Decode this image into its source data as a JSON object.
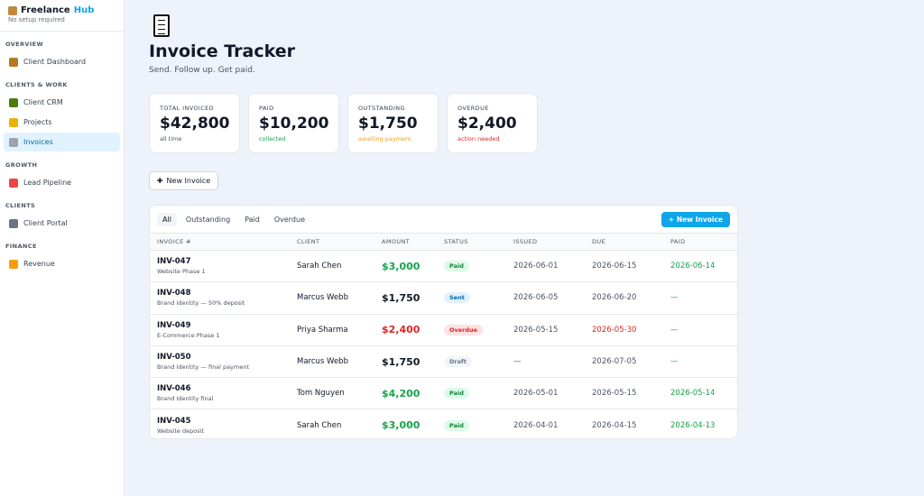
{
  "sidebar": {
    "brand": "Freelance",
    "brand_accent": "Hub",
    "tagline": "No setup required",
    "sections": [
      {
        "title": "OVERVIEW",
        "items": [
          {
            "label": "Client Dashboard",
            "color": "#b7791f"
          }
        ]
      },
      {
        "title": "CLIENTS & WORK",
        "items": [
          {
            "label": "Client CRM",
            "color": "#4d7c0f"
          },
          {
            "label": "Projects",
            "color": "#eab308"
          },
          {
            "label": "Invoices",
            "color": "#9ca3af",
            "active": true
          }
        ]
      },
      {
        "title": "GROWTH",
        "items": [
          {
            "label": "Lead Pipeline",
            "color": "#ef4444"
          }
        ]
      },
      {
        "title": "CLIENTS",
        "items": [
          {
            "label": "Client Portal",
            "color": "#6b7280"
          }
        ]
      },
      {
        "title": "FINANCE",
        "items": [
          {
            "label": "Revenue",
            "color": "#f59e0b"
          }
        ]
      }
    ]
  },
  "header": {
    "title": "Invoice Tracker",
    "subtitle": "Send. Follow up. Get paid."
  },
  "stats": [
    {
      "label": "TOTAL INVOICED",
      "value": "$42,800",
      "note": "all time",
      "color": "#4b5563"
    },
    {
      "label": "PAID",
      "value": "$10,200",
      "note": "collected",
      "color": "#16a34a"
    },
    {
      "label": "OUTSTANDING",
      "value": "$1,750",
      "note": "awaiting payment",
      "color": "#f59e0b"
    },
    {
      "label": "OVERDUE",
      "value": "$2,400",
      "note": "action needed",
      "color": "#dc2626"
    }
  ],
  "new_button": "New Invoice",
  "table": {
    "tabs": [
      "All",
      "Outstanding",
      "Paid",
      "Overdue"
    ],
    "action": "+ New Invoice",
    "columns": [
      "INVOICE #",
      "CLIENT",
      "AMOUNT",
      "STATUS",
      "ISSUED",
      "DUE",
      "PAID"
    ],
    "rows": [
      {
        "invoice": "INV-047",
        "description": "Website Phase 1",
        "client": "Sarah Chen",
        "amount": "$3,000",
        "status": "Paid",
        "issued": "2026-06-01",
        "due": "2026-06-15",
        "paid": "2026-06-14"
      },
      {
        "invoice": "INV-048",
        "description": "Brand Identity — 50% deposit",
        "client": "Marcus Webb",
        "amount": "$1,750",
        "status": "Sent",
        "issued": "2026-06-05",
        "due": "2026-06-20",
        "paid": "—"
      },
      {
        "invoice": "INV-049",
        "description": "E-Commerce Phase 1",
        "client": "Priya Sharma",
        "amount": "$2,400",
        "status": "Overdue",
        "issued": "2026-05-15",
        "due": "2026-05-30",
        "paid": "—"
      },
      {
        "invoice": "INV-050",
        "description": "Brand Identity — final payment",
        "client": "Marcus Webb",
        "amount": "$1,750",
        "status": "Draft",
        "issued": "—",
        "due": "2026-07-05",
        "paid": "—"
      },
      {
        "invoice": "INV-046",
        "description": "Brand Identity final",
        "client": "Tom Nguyen",
        "amount": "$4,200",
        "status": "Paid",
        "issued": "2026-05-01",
        "due": "2026-05-15",
        "paid": "2026-05-14"
      },
      {
        "invoice": "INV-045",
        "description": "Website deposit",
        "client": "Sarah Chen",
        "amount": "$3,000",
        "status": "Paid",
        "issued": "2026-04-01",
        "due": "2026-04-15",
        "paid": "2026-04-13"
      }
    ]
  }
}
